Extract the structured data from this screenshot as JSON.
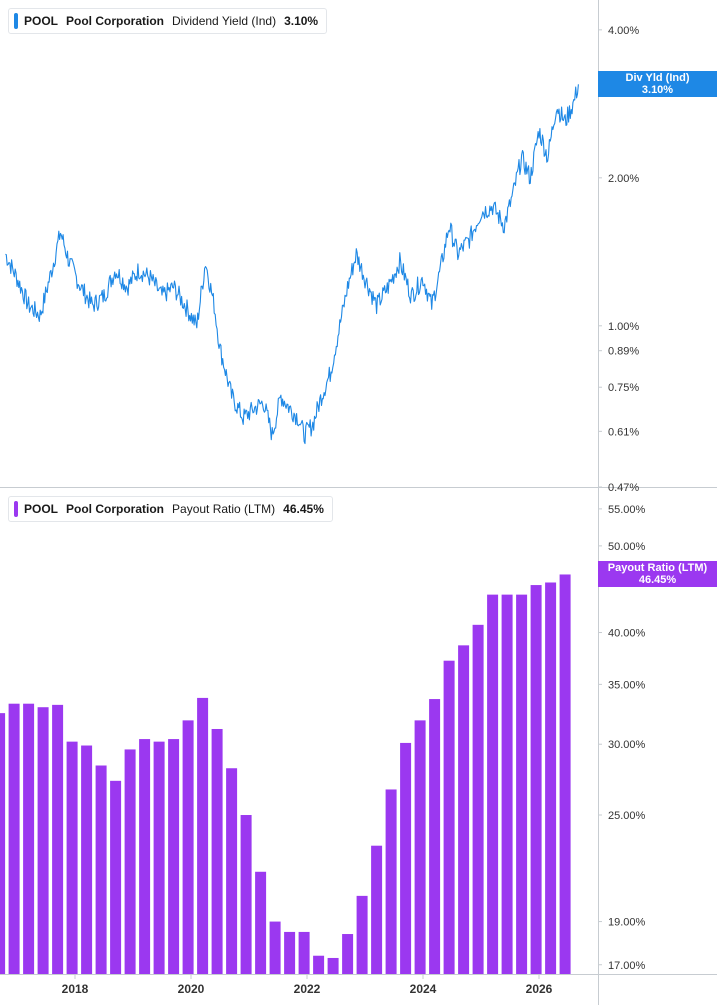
{
  "chart_data": [
    {
      "type": "line",
      "ticker": "POOL",
      "company": "Pool Corporation",
      "metric": "Dividend Yield (Ind)",
      "current_value": "3.10%",
      "tag_label": "Div Yld (Ind)",
      "color": "#1e88e5",
      "yscale": "log",
      "ylim": [
        0.47,
        4.6
      ],
      "y_ticks": [
        {
          "value": 4.0,
          "label": "4.00%"
        },
        {
          "value": 2.0,
          "label": "2.00%"
        },
        {
          "value": 1.0,
          "label": "1.00%"
        },
        {
          "value": 0.89,
          "label": "0.89%"
        },
        {
          "value": 0.75,
          "label": "0.75%"
        },
        {
          "value": 0.61,
          "label": "0.61%"
        },
        {
          "value": 0.47,
          "label": "0.47%"
        }
      ],
      "x": [
        2016.8,
        2017.0,
        2017.2,
        2017.4,
        2017.6,
        2017.75,
        2017.9,
        2018.1,
        2018.3,
        2018.5,
        2018.7,
        2018.9,
        2019.1,
        2019.3,
        2019.5,
        2019.7,
        2019.9,
        2020.1,
        2020.25,
        2020.4,
        2020.5,
        2020.7,
        2020.9,
        2021.1,
        2021.25,
        2021.4,
        2021.55,
        2021.7,
        2021.85,
        2021.95,
        2022.1,
        2022.25,
        2022.4,
        2022.55,
        2022.7,
        2022.85,
        2023.0,
        2023.2,
        2023.4,
        2023.6,
        2023.8,
        2024.0,
        2024.15,
        2024.3,
        2024.45,
        2024.6,
        2024.8,
        2025.0,
        2025.2,
        2025.4,
        2025.55,
        2025.7,
        2025.85,
        2026.0,
        2026.15,
        2026.3,
        2026.45,
        2026.6,
        2026.68
      ],
      "values": [
        1.4,
        1.25,
        1.1,
        1.05,
        1.3,
        1.55,
        1.35,
        1.2,
        1.1,
        1.15,
        1.3,
        1.2,
        1.3,
        1.25,
        1.15,
        1.2,
        1.1,
        1.0,
        1.35,
        1.1,
        0.9,
        0.72,
        0.65,
        0.68,
        0.7,
        0.6,
        0.72,
        0.68,
        0.65,
        0.6,
        0.63,
        0.72,
        0.8,
        0.98,
        1.2,
        1.4,
        1.25,
        1.1,
        1.2,
        1.35,
        1.15,
        1.25,
        1.1,
        1.3,
        1.6,
        1.4,
        1.5,
        1.7,
        1.75,
        1.6,
        1.85,
        2.2,
        2.0,
        2.5,
        2.2,
        2.8,
        2.6,
        2.85,
        3.1
      ]
    },
    {
      "type": "bar",
      "ticker": "POOL",
      "company": "Pool Corporation",
      "metric": "Payout Ratio (LTM)",
      "current_value": "46.45%",
      "tag_label": "Payout Ratio (LTM)",
      "color": "#9b38f0",
      "yscale": "log",
      "ylim": [
        16.6,
        57
      ],
      "y_ticks": [
        {
          "value": 55,
          "label": "55.00%"
        },
        {
          "value": 50,
          "label": "50.00%"
        },
        {
          "value": 40,
          "label": "40.00%"
        },
        {
          "value": 35,
          "label": "35.00%"
        },
        {
          "value": 30,
          "label": "30.00%"
        },
        {
          "value": 25,
          "label": "25.00%"
        },
        {
          "value": 19,
          "label": "19.00%"
        },
        {
          "value": 17,
          "label": "17.00%"
        }
      ],
      "x": [
        2016.7,
        2016.95,
        2017.2,
        2017.45,
        2017.7,
        2017.95,
        2018.2,
        2018.45,
        2018.7,
        2018.95,
        2019.2,
        2019.45,
        2019.7,
        2019.95,
        2020.2,
        2020.45,
        2020.7,
        2020.95,
        2021.2,
        2021.45,
        2021.7,
        2021.95,
        2022.2,
        2022.45,
        2022.7,
        2022.95,
        2023.2,
        2023.45,
        2023.7,
        2023.95,
        2024.2,
        2024.45,
        2024.7,
        2024.95,
        2025.2,
        2025.45,
        2025.7,
        2025.95,
        2026.2,
        2026.45
      ],
      "values": [
        32.5,
        33.3,
        33.3,
        33.0,
        33.2,
        30.2,
        29.9,
        28.4,
        27.3,
        29.6,
        30.4,
        30.2,
        30.4,
        31.9,
        33.8,
        31.2,
        28.2,
        25.0,
        21.6,
        19.0,
        18.5,
        18.5,
        17.4,
        17.3,
        18.4,
        20.3,
        23.1,
        26.7,
        30.1,
        31.9,
        33.7,
        37.2,
        38.7,
        40.8,
        44.1,
        44.1,
        44.1,
        45.2,
        45.5,
        46.45
      ]
    }
  ],
  "x_axis": {
    "ticks": [
      {
        "value": 2018,
        "label": "2018"
      },
      {
        "value": 2020,
        "label": "2020"
      },
      {
        "value": 2022,
        "label": "2022"
      },
      {
        "value": 2024,
        "label": "2024"
      },
      {
        "value": 2026,
        "label": "2026"
      }
    ]
  }
}
